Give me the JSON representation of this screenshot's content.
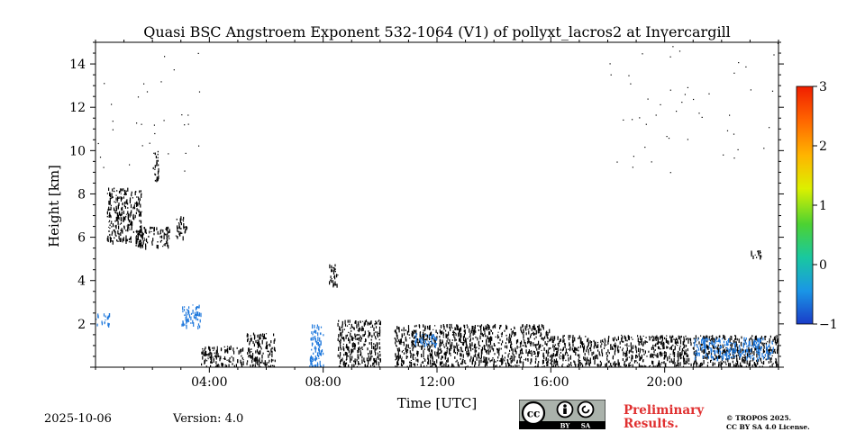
{
  "chart_data": {
    "type": "heatmap",
    "title": "Quasi BSC Angstroem Exponent 532-1064 (V1) of pollyxt_lacros2 at Invercargill",
    "xlabel": "Time [UTC]",
    "ylabel": "Height [km]",
    "xlim_hours": [
      0,
      24
    ],
    "ylim_km": [
      0,
      15
    ],
    "x_ticks": [
      {
        "value": 4,
        "label": "04:00"
      },
      {
        "value": 8,
        "label": "08:00"
      },
      {
        "value": 12,
        "label": "12:00"
      },
      {
        "value": 16,
        "label": "16:00"
      },
      {
        "value": 20,
        "label": "20:00"
      }
    ],
    "y_ticks": [
      {
        "value": 2,
        "label": "2"
      },
      {
        "value": 4,
        "label": "4"
      },
      {
        "value": 6,
        "label": "6"
      },
      {
        "value": 8,
        "label": "8"
      },
      {
        "value": 10,
        "label": "10"
      },
      {
        "value": 12,
        "label": "12"
      },
      {
        "value": 14,
        "label": "14"
      }
    ],
    "colorbar": {
      "range": [
        -1,
        3
      ],
      "ticks": [
        {
          "value": 3,
          "label": "3"
        },
        {
          "value": 2,
          "label": "2"
        },
        {
          "value": 1,
          "label": "1"
        },
        {
          "value": 0,
          "label": "0"
        },
        {
          "value": -1,
          "label": "−1"
        }
      ],
      "colormap": "jet",
      "colors": [
        "#1a3cc8",
        "#1a96e6",
        "#19c8a0",
        "#4cd232",
        "#dcf000",
        "#ffb400",
        "#ff6400",
        "#f01e00"
      ]
    },
    "data_color": "#000000",
    "colored_pixel_color": "#1e78dc",
    "regions": [
      {
        "t": [
          0.0,
          0.5
        ],
        "h": [
          2.0,
          2.5
        ],
        "kind": "blue"
      },
      {
        "t": [
          0.4,
          1.6
        ],
        "h": [
          5.8,
          8.3
        ],
        "kind": "black"
      },
      {
        "t": [
          1.4,
          2.6
        ],
        "h": [
          5.6,
          6.5
        ],
        "kind": "black"
      },
      {
        "t": [
          2.0,
          2.2
        ],
        "h": [
          8.6,
          10.0
        ],
        "kind": "black"
      },
      {
        "t": [
          2.8,
          3.2
        ],
        "h": [
          6.0,
          7.0
        ],
        "kind": "black"
      },
      {
        "t": [
          3.0,
          3.7
        ],
        "h": [
          1.9,
          2.9
        ],
        "kind": "blue"
      },
      {
        "t": [
          3.7,
          5.2
        ],
        "h": [
          0.0,
          1.0
        ],
        "kind": "black"
      },
      {
        "t": [
          5.3,
          6.3
        ],
        "h": [
          0.0,
          1.6
        ],
        "kind": "black"
      },
      {
        "t": [
          7.5,
          8.0
        ],
        "h": [
          0.0,
          2.0
        ],
        "kind": "blue"
      },
      {
        "t": [
          8.2,
          8.5
        ],
        "h": [
          3.8,
          4.8
        ],
        "kind": "black"
      },
      {
        "t": [
          8.5,
          10.0
        ],
        "h": [
          0.0,
          2.2
        ],
        "kind": "black"
      },
      {
        "t": [
          10.5,
          16.0
        ],
        "h": [
          0.0,
          2.0
        ],
        "kind": "black"
      },
      {
        "t": [
          11.2,
          12.0
        ],
        "h": [
          1.0,
          1.6
        ],
        "kind": "blue"
      },
      {
        "t": [
          16.0,
          24.0
        ],
        "h": [
          0.0,
          1.5
        ],
        "kind": "black"
      },
      {
        "t": [
          21.0,
          23.8
        ],
        "h": [
          0.4,
          1.4
        ],
        "kind": "blue"
      },
      {
        "t": [
          23.0,
          23.4
        ],
        "h": [
          5.0,
          5.4
        ],
        "kind": "black"
      }
    ]
  },
  "footer": {
    "date": "2025-10-06",
    "version": "Version: 4.0",
    "preliminary_line1": "Preliminary",
    "preliminary_line2": "Results.",
    "copyright_line1": "© TROPOS 2025.",
    "copyright_line2": "CC BY SA 4.0 License."
  },
  "license_badge": {
    "cc": "cc",
    "by": "BY",
    "sa": "SA"
  }
}
